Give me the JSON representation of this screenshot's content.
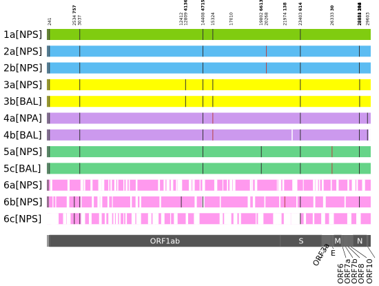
{
  "genome_length": 29903,
  "positions": [
    {
      "text": "241",
      "pos": 241,
      "bold": ""
    },
    {
      "text": "2534 ",
      "pos": 2534,
      "bold": "757"
    },
    {
      "text": "3037",
      "pos": 3037,
      "bold": ""
    },
    {
      "text": "12412",
      "pos": 12412,
      "bold": ""
    },
    {
      "text": "12809 ",
      "pos": 12809,
      "bold": "4136"
    },
    {
      "text": "14408 ",
      "pos": 14408,
      "bold": "4715"
    },
    {
      "text": "15324",
      "pos": 15324,
      "bold": ""
    },
    {
      "text": "17010",
      "pos": 17010,
      "bold": ""
    },
    {
      "text": "19802 ",
      "pos": 19802,
      "bold": "6613"
    },
    {
      "text": "20268",
      "pos": 20268,
      "bold": ""
    },
    {
      "text": "21974 ",
      "pos": 21974,
      "bold": "138"
    },
    {
      "text": "23403 ",
      "pos": 23403,
      "bold": "614"
    },
    {
      "text": "26333 ",
      "pos": 26333,
      "bold": "30"
    },
    {
      "text": "28854 ",
      "pos": 28854,
      "bold": "194"
    },
    {
      "text": "28881 ",
      "pos": 28881,
      "bold": "203"
    },
    {
      "text": "28882 ",
      "pos": 28882,
      "bold": "203"
    },
    {
      "text": "28883 ",
      "pos": 28883,
      "bold": "204"
    },
    {
      "text": "29603",
      "pos": 29603,
      "bold": ""
    }
  ],
  "samples": [
    {
      "label": "1a[NPS]",
      "color": "#80cc10",
      "variants": [
        241,
        3037,
        14408,
        15324,
        23403
      ]
    },
    {
      "label": "2a[NPS]",
      "color": "#5bbcf2",
      "variants": [
        241,
        3037,
        14408,
        20268,
        23403,
        28854
      ]
    },
    {
      "label": "2b[NPS]",
      "color": "#5bbcf2",
      "variants": [
        241,
        3037,
        14408,
        20268,
        23403,
        28854
      ]
    },
    {
      "label": "3a[NPS]",
      "color": "#ffff00",
      "variants": [
        241,
        3037,
        12809,
        14408,
        15324,
        23403,
        28881
      ]
    },
    {
      "label": "3b[BAL]",
      "color": "#ffff00",
      "variants": [
        241,
        3037,
        12809,
        14408,
        15324,
        23403,
        28881
      ]
    },
    {
      "label": "4a[NPA]",
      "color": "#cc99ee",
      "variants": [
        241,
        3037,
        14408,
        15324,
        23403,
        28854,
        29603
      ]
    },
    {
      "label": "4b[BAL]",
      "color": "#cc99ee",
      "variants": [
        241,
        3037,
        14408,
        15324,
        23403,
        28854,
        29603
      ]
    },
    {
      "label": "5a[NPS]",
      "color": "#66d488",
      "variants": [
        241,
        3037,
        14408,
        19802,
        23403,
        26333,
        28854
      ]
    },
    {
      "label": "5c[BAL]",
      "color": "#66d488",
      "variants": [
        241,
        3037,
        14408,
        19802,
        23403,
        26333,
        28854
      ]
    },
    {
      "label": "6a[NPS]",
      "color": "#ff99ee",
      "variants": []
    },
    {
      "label": "6b[NPS]",
      "color": "#ff99ee",
      "variants": [
        2534,
        3037,
        12412,
        14408,
        21974,
        23403,
        28854
      ]
    },
    {
      "label": "6c[NPS]",
      "color": "#ff99ee",
      "variants": [
        2534,
        3037,
        23403
      ]
    }
  ],
  "genes": {
    "inside": [
      {
        "name": "ORF1ab",
        "start": 266,
        "end": 21555
      },
      {
        "name": "S",
        "start": 21563,
        "end": 25384
      },
      {
        "name": "M",
        "start": 26523,
        "end": 27191
      },
      {
        "name": "N",
        "start": 28274,
        "end": 29533
      }
    ],
    "outside": [
      {
        "name": "ORF3a",
        "start": 25393,
        "end": 26220
      },
      {
        "name": "E",
        "start": 26245,
        "end": 26472
      },
      {
        "name": "ORF6",
        "start": 27202,
        "end": 27387
      },
      {
        "name": "ORF7a",
        "start": 27394,
        "end": 27759
      },
      {
        "name": "ORF7b",
        "start": 27756,
        "end": 27887
      },
      {
        "name": "ORF8",
        "start": 27894,
        "end": 28259
      },
      {
        "name": "ORF10",
        "start": 29558,
        "end": 29674
      }
    ]
  }
}
